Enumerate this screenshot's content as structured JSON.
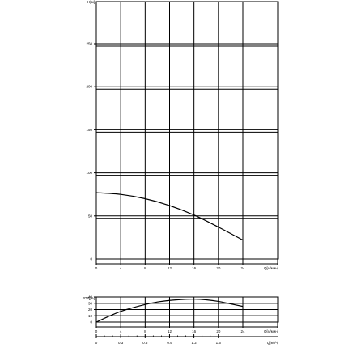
{
  "chart_data": [
    {
      "type": "line",
      "ylabel": "H[м]",
      "xlabel": "Q[л/мин]",
      "xlim": [
        0,
        30
      ],
      "ylim": [
        0,
        300
      ],
      "xticks": [
        "0",
        "4",
        "8",
        "12",
        "16",
        "20",
        "24"
      ],
      "yticks": [
        "0",
        "50",
        "100",
        "150",
        "200",
        "250"
      ],
      "grid": true,
      "series": [
        {
          "x": [
            0,
            4,
            8,
            12,
            16,
            20,
            24
          ],
          "values": [
            77,
            75,
            70,
            62,
            51,
            37,
            22
          ]
        }
      ]
    },
    {
      "type": "line",
      "ylabel": "КПД[%]",
      "xlabel": "Q[л/мин]",
      "xlim": [
        0,
        30
      ],
      "ylim": [
        0,
        40
      ],
      "xticks": [
        "0",
        "4",
        "8",
        "12",
        "16",
        "20",
        "24"
      ],
      "yticks": [
        "0",
        "10",
        "20",
        "30",
        "40"
      ],
      "grid": true,
      "series": [
        {
          "x": [
            0,
            2,
            4,
            6,
            8,
            10,
            12,
            14,
            16,
            18,
            20,
            22,
            24
          ],
          "values": [
            0,
            9,
            17,
            23,
            28,
            32,
            34.5,
            36,
            36.5,
            35.5,
            33,
            29,
            25
          ]
        }
      ]
    }
  ],
  "secondary_axis": {
    "xlabel": "Q[м³/ч]",
    "ticks": [
      "0",
      "0.3",
      "0.6",
      "0.9",
      "1.2",
      "1.5"
    ],
    "values": [
      0,
      0.3,
      0.6,
      0.9,
      1.2,
      1.5
    ]
  }
}
